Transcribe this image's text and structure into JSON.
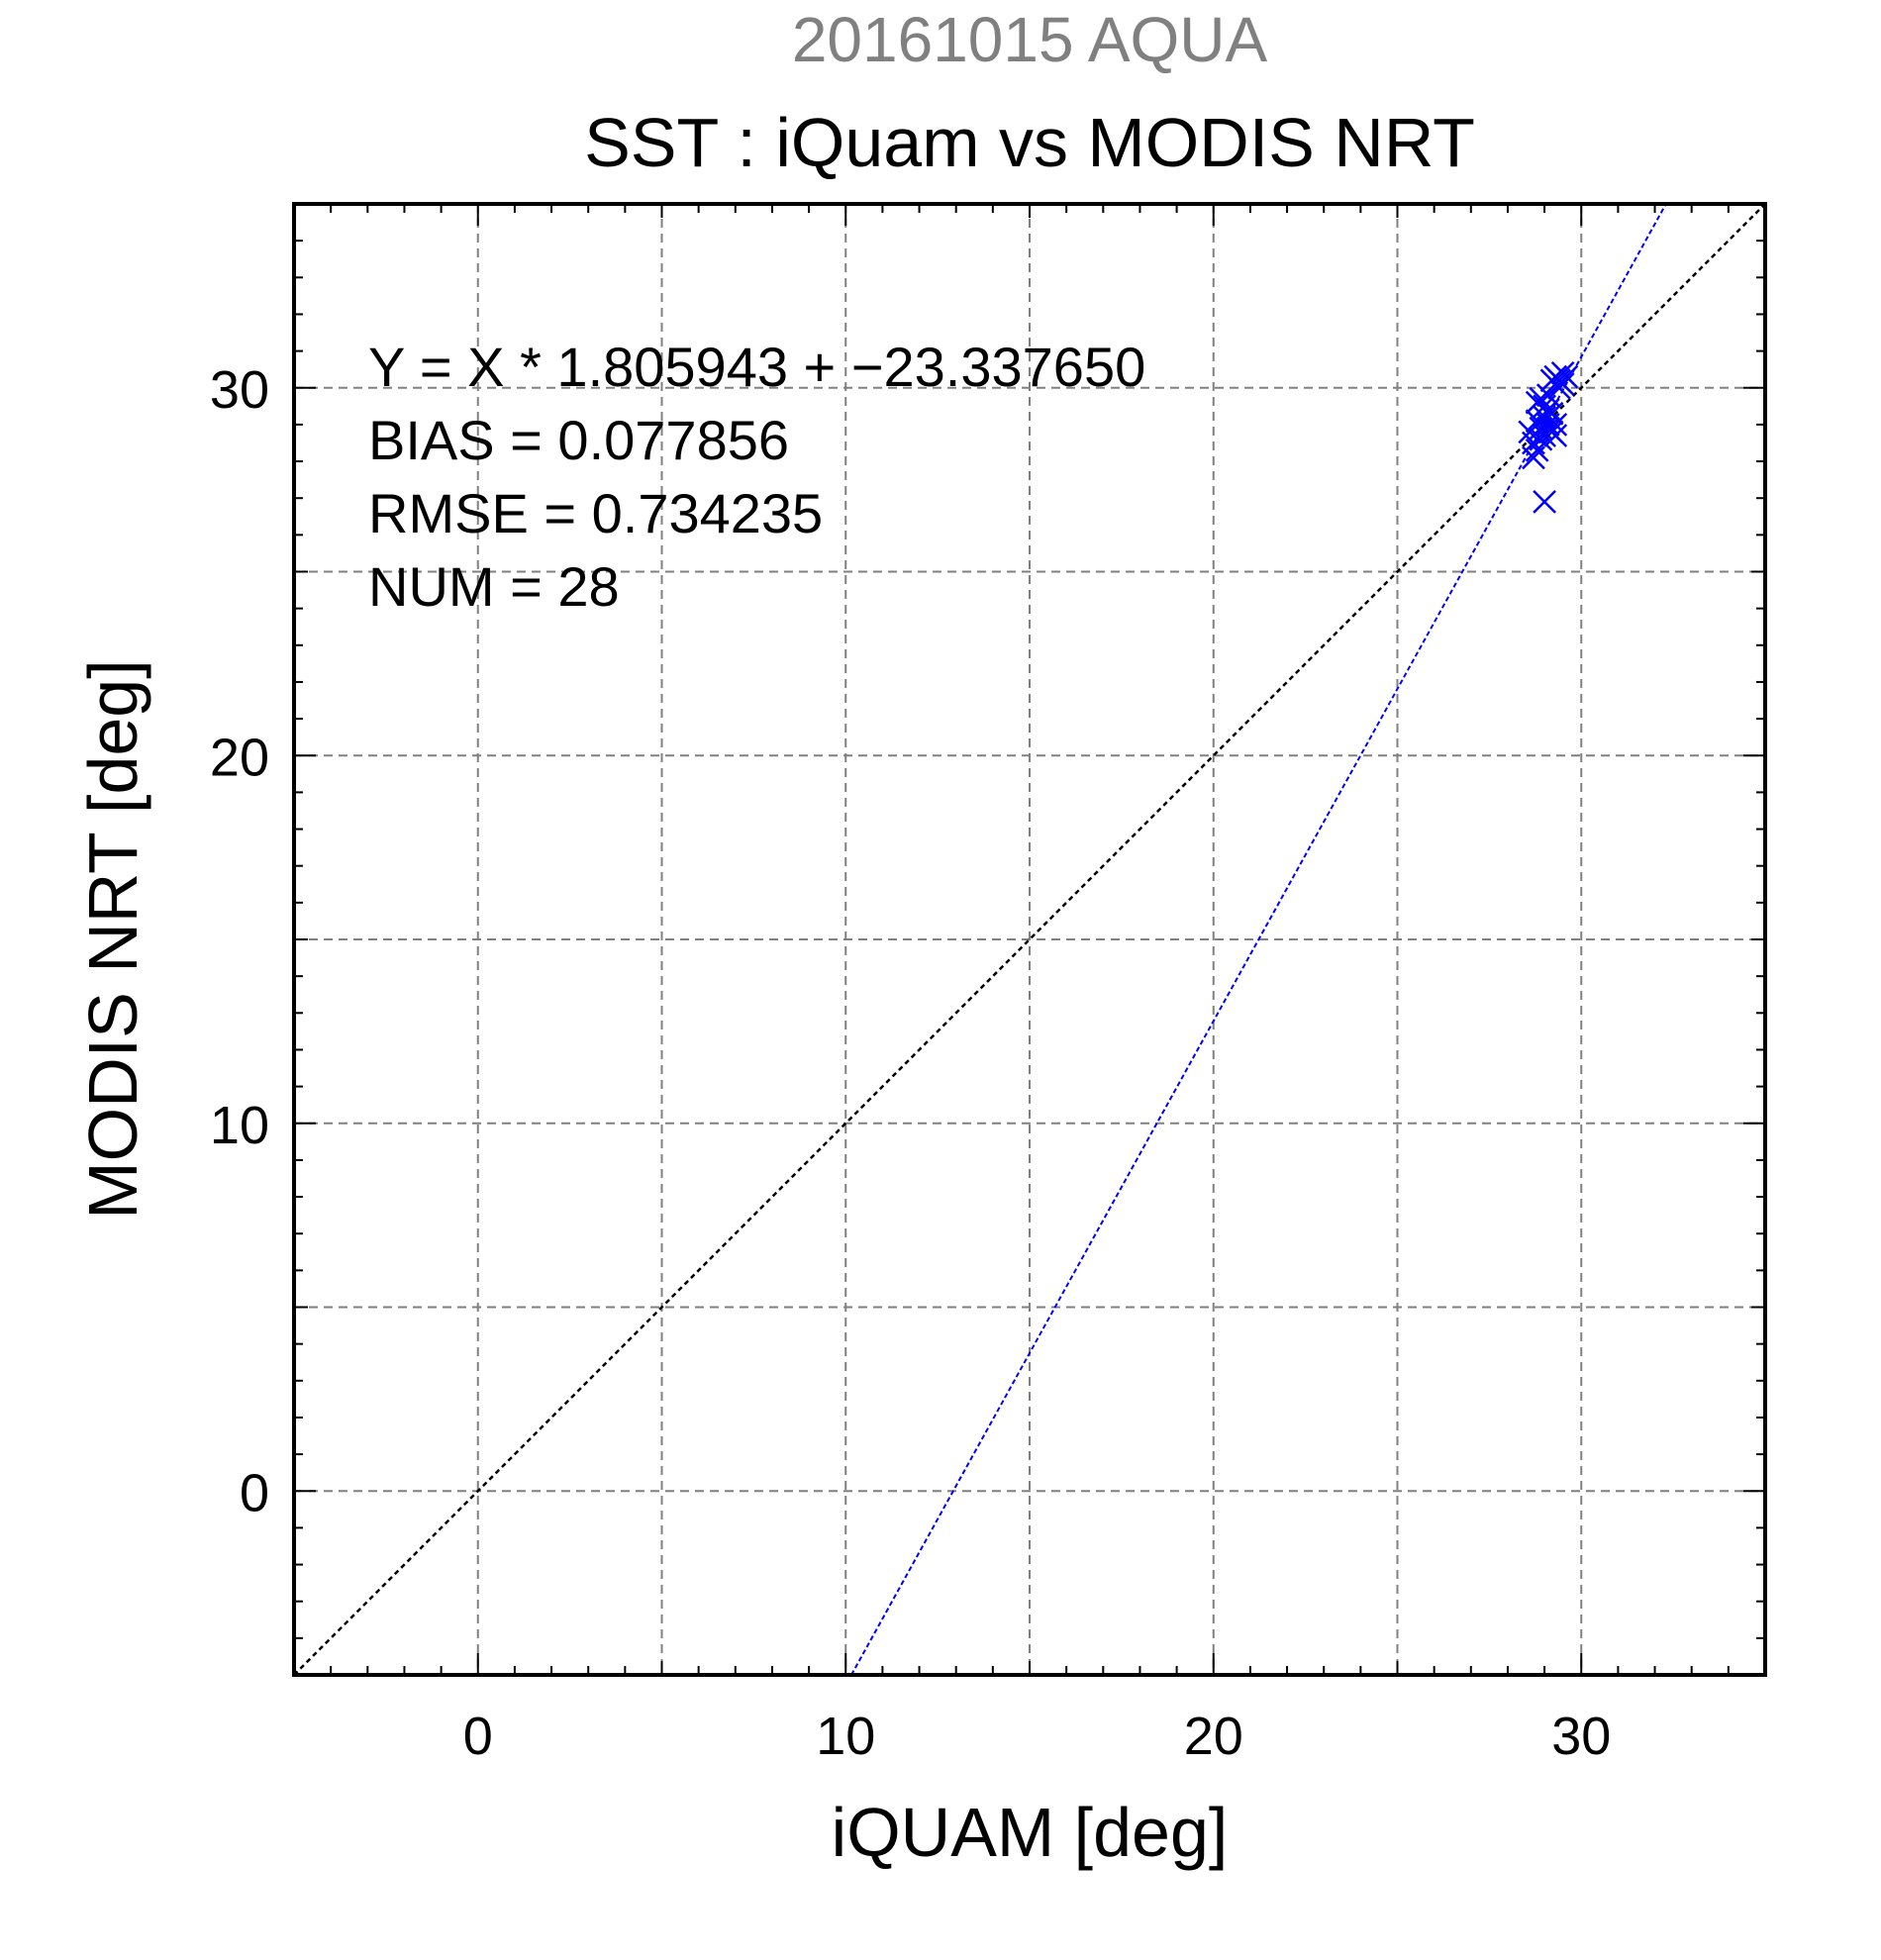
{
  "header": {
    "suptitle": "20161015 AQUA",
    "title": "SST : iQuam vs MODIS NRT"
  },
  "colors": {
    "suptitle": "#808080",
    "points": "#0000ff",
    "fit_line": "#0000ff",
    "identity_line": "#000000",
    "grid": "#808080"
  },
  "chart_data": {
    "type": "scatter",
    "title": "SST : iQuam vs MODIS NRT",
    "xlabel": "iQUAM [deg]",
    "ylabel": "MODIS NRT [deg]",
    "xlim": [
      -5,
      35
    ],
    "ylim": [
      -5,
      35
    ],
    "xticks": [
      0,
      10,
      20,
      30
    ],
    "yticks": [
      0,
      10,
      20,
      30
    ],
    "xtick_labels": [
      "0",
      "10",
      "20",
      "30"
    ],
    "ytick_labels": [
      "0",
      "10",
      "20",
      "30"
    ],
    "grid": true,
    "marker": "x",
    "fit": {
      "slope": 1.805943,
      "intercept": -23.33765
    },
    "identity_line": true,
    "stats": [
      "Y = X * 1.805943 + −23.337650",
      "BIAS = 0.077856",
      "RMSE = 0.734235",
      "NUM = 28"
    ],
    "points": [
      {
        "x": 28.6,
        "y": 28.8
      },
      {
        "x": 28.7,
        "y": 28.5
      },
      {
        "x": 28.8,
        "y": 28.3
      },
      {
        "x": 28.7,
        "y": 28.1
      },
      {
        "x": 28.9,
        "y": 28.6
      },
      {
        "x": 28.8,
        "y": 29.6
      },
      {
        "x": 28.9,
        "y": 29.7
      },
      {
        "x": 29.0,
        "y": 29.5
      },
      {
        "x": 29.0,
        "y": 29.2
      },
      {
        "x": 29.1,
        "y": 29.0
      },
      {
        "x": 29.1,
        "y": 28.9
      },
      {
        "x": 29.2,
        "y": 29.3
      },
      {
        "x": 29.2,
        "y": 28.8
      },
      {
        "x": 29.3,
        "y": 29.0
      },
      {
        "x": 29.3,
        "y": 28.7
      },
      {
        "x": 29.2,
        "y": 30.2
      },
      {
        "x": 29.3,
        "y": 30.3
      },
      {
        "x": 29.4,
        "y": 30.2
      },
      {
        "x": 29.5,
        "y": 30.4
      },
      {
        "x": 29.6,
        "y": 30.3
      },
      {
        "x": 29.4,
        "y": 30.0
      },
      {
        "x": 29.5,
        "y": 30.1
      },
      {
        "x": 29.1,
        "y": 29.4
      },
      {
        "x": 28.9,
        "y": 28.9
      },
      {
        "x": 29.0,
        "y": 28.7
      },
      {
        "x": 28.8,
        "y": 29.1
      },
      {
        "x": 29.1,
        "y": 29.8
      },
      {
        "x": 29.0,
        "y": 26.9
      }
    ]
  }
}
